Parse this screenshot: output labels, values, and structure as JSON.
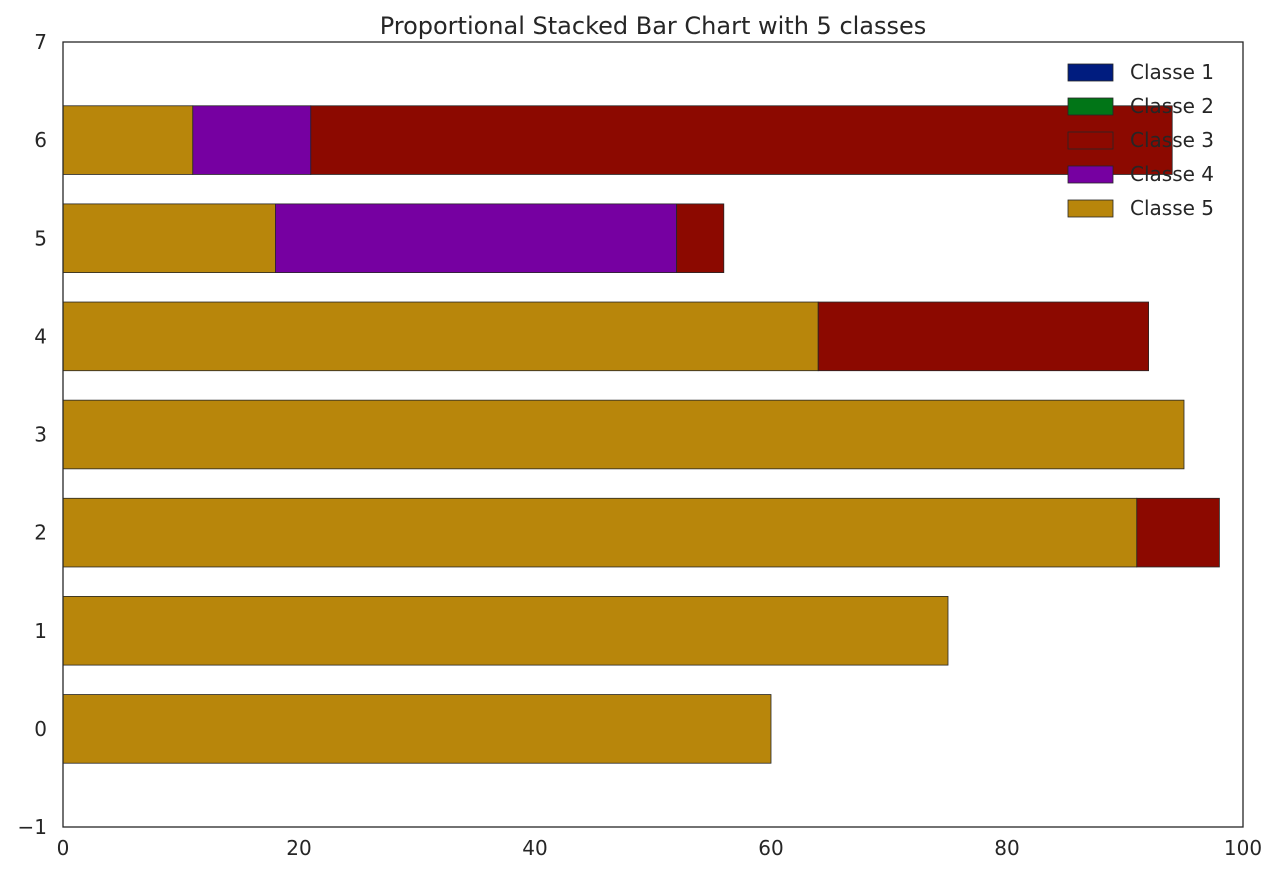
{
  "chart_data": {
    "type": "bar",
    "orientation": "horizontal",
    "stacked": true,
    "title": "Proportional Stacked Bar Chart with 5 classes",
    "xlabel": "",
    "ylabel": "",
    "xlim": [
      0,
      100
    ],
    "ylim": [
      -1,
      7
    ],
    "x_ticks": [
      "0",
      "20",
      "40",
      "60",
      "80",
      "100"
    ],
    "y_ticks": [
      "−1",
      "0",
      "1",
      "2",
      "3",
      "4",
      "5",
      "6",
      "7"
    ],
    "categories": [
      0,
      1,
      2,
      3,
      4,
      5,
      6
    ],
    "grid": false,
    "legend_position": "top-right",
    "series": [
      {
        "name": "Classe 1",
        "color": "#001c7f",
        "values": [
          0,
          0,
          0,
          0,
          0,
          0,
          0
        ]
      },
      {
        "name": "Classe 2",
        "color": "#017517",
        "values": [
          0,
          0,
          0,
          0,
          0,
          0,
          0
        ]
      },
      {
        "name": "Classe 3",
        "color": "#8c0900",
        "values": [
          0,
          0,
          7,
          0,
          28,
          4,
          73
        ]
      },
      {
        "name": "Classe 4",
        "color": "#7600a1",
        "values": [
          0,
          0,
          0,
          0,
          0,
          34,
          10
        ]
      },
      {
        "name": "Classe 5",
        "color": "#b8860b",
        "values": [
          60,
          75,
          91,
          95,
          64,
          18,
          11
        ]
      }
    ],
    "stack_order_left_to_right": [
      "Classe 5",
      "Classe 4",
      "Classe 3",
      "Classe 2",
      "Classe 1"
    ]
  }
}
